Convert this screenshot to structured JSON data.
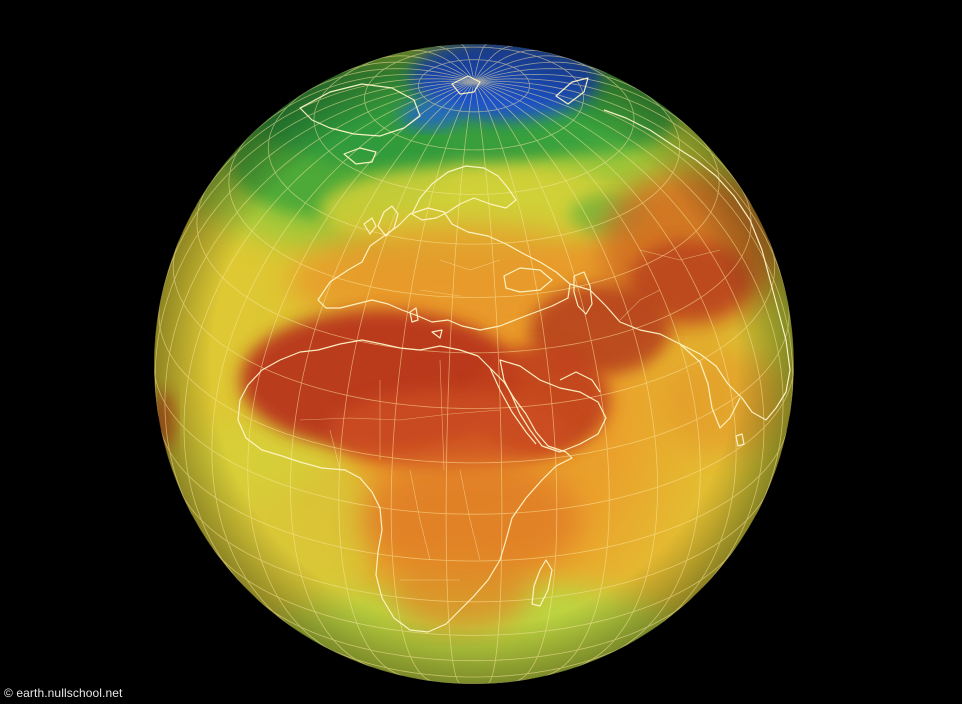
{
  "credit": {
    "text": "© earth.nullschool.net"
  },
  "map": {
    "projection": "orthographic",
    "background_color": "#000000",
    "coastline_color": "#fff6c8",
    "graticule_color": "#ffe9a0",
    "heat_scale": {
      "cold": "#1446c8",
      "cool": "#2a9a3a",
      "mild": "#c8d83a",
      "warm": "#f0b030",
      "hot": "#e06a22",
      "very_hot": "#b8301c"
    }
  }
}
